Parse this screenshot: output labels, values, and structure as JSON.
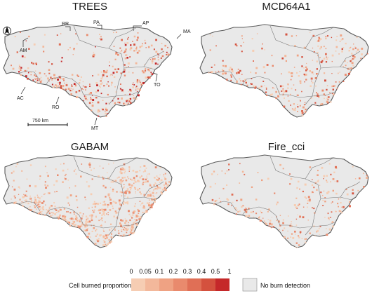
{
  "panels": [
    {
      "title": "TREES",
      "intensity": 1.0,
      "density": 0.55
    },
    {
      "title": "MCD64A1",
      "intensity": 0.85,
      "density": 0.45
    },
    {
      "title": "GABAM",
      "intensity": 0.55,
      "density": 1.0
    },
    {
      "title": "Fire_cci",
      "intensity": 0.75,
      "density": 0.35
    }
  ],
  "state_labels": [
    "RR",
    "PA",
    "AP",
    "MA",
    "AM",
    "AC",
    "RO",
    "MT",
    "TO"
  ],
  "scale_bar": {
    "label": "750 km"
  },
  "north_arrow": {
    "label": "N"
  },
  "legend": {
    "title": "Cell burned proportion:",
    "ticks": [
      "0",
      "0.05",
      "0.1",
      "0.2",
      "0.3",
      "0.4",
      "0.5",
      "1"
    ],
    "colors": [
      "#f6cdb3",
      "#f3b89b",
      "#efa283",
      "#e98a6d",
      "#e06f56",
      "#d4513e",
      "#c5282a"
    ],
    "no_data_label": "No burn detection",
    "no_data_color": "#e9e9e9"
  }
}
